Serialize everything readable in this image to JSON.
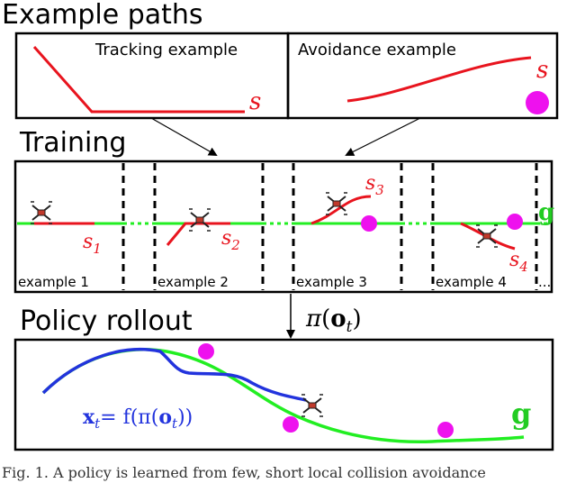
{
  "sections": {
    "example_paths": "Example paths",
    "training": "Training",
    "policy_rollout": "Policy rollout"
  },
  "examples": {
    "tracking_label": "Tracking example",
    "avoidance_label": "Avoidance  example",
    "path_symbol": "s"
  },
  "training": {
    "goal_symbol": "g",
    "panel_labels": [
      "example 1",
      "example 2",
      "example 3",
      "example 4"
    ],
    "path_symbols": [
      "s",
      "s",
      "s",
      "s"
    ],
    "path_subscripts": [
      "1",
      "2",
      "3",
      "4"
    ],
    "ellipsis": "..."
  },
  "policy": {
    "pi": "π",
    "o": "o",
    "t": "t",
    "x": "x",
    "eq": "= f(π(",
    "close2": "))",
    "lparen": "(",
    "rparen": ")",
    "goal_symbol": "g"
  },
  "caption": "Fig. 1.  A policy is learned from few, short local collision avoidance"
}
